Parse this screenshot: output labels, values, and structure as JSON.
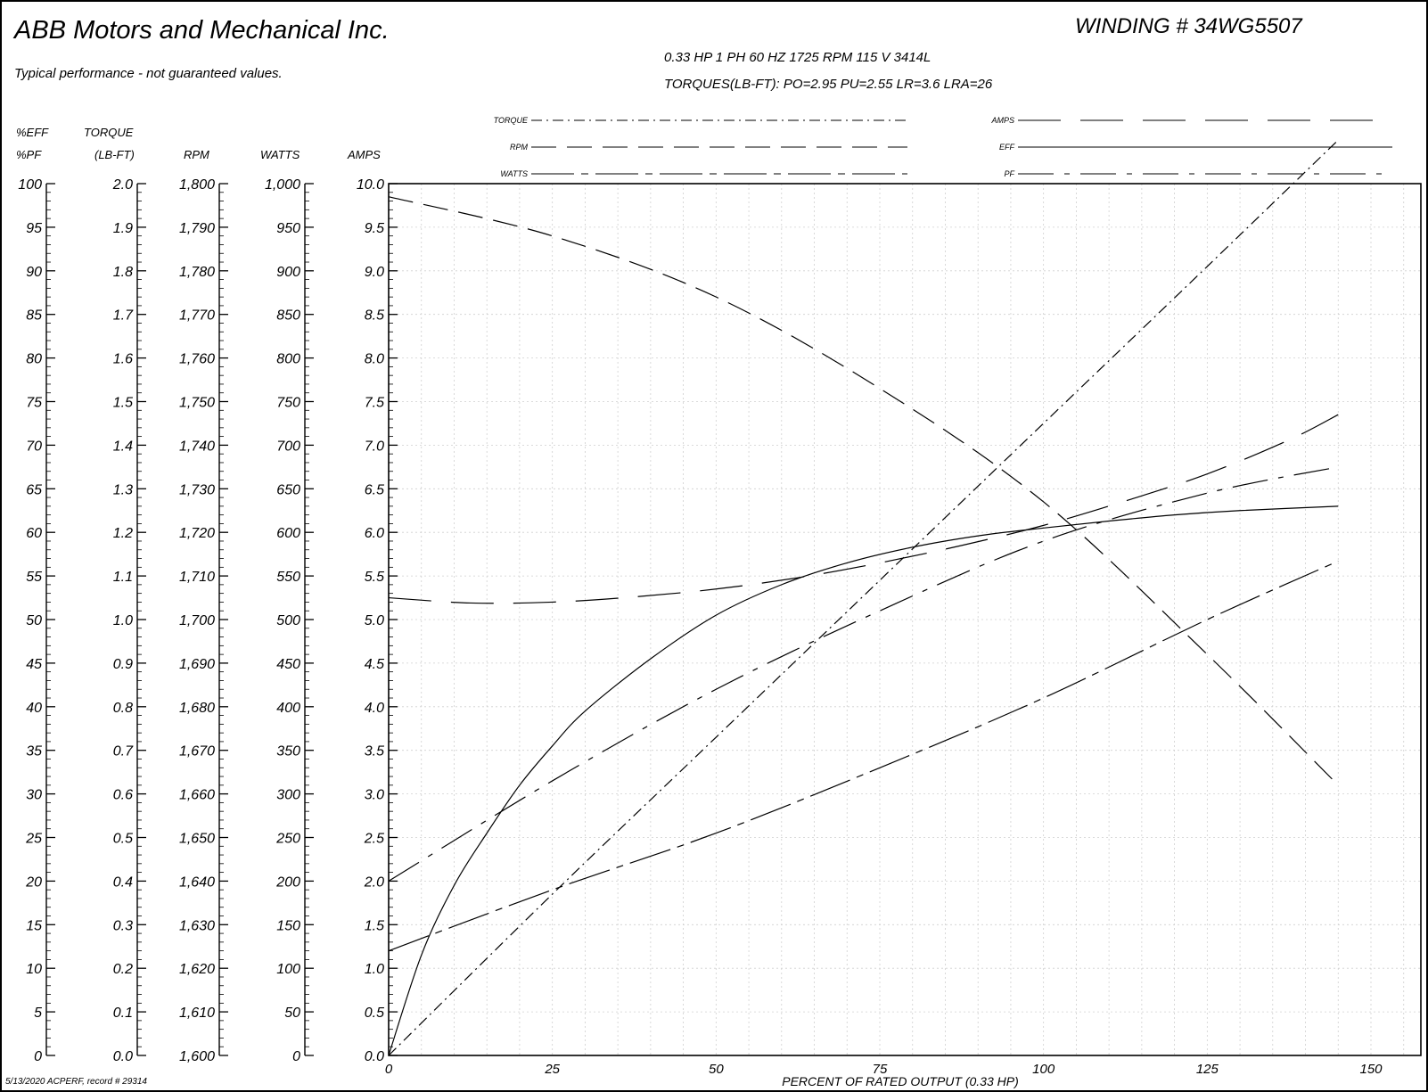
{
  "company": "ABB Motors and Mechanical Inc.",
  "disclaimer": "Typical performance - not guaranteed values.",
  "winding": "WINDING # 34WG5507",
  "specs": "0.33 HP  1 PH  60 HZ  1725 RPM  115 V  3414L",
  "torques": "TORQUES(LB-FT): PO=2.95  PU=2.55  LR=3.6  LRA=26",
  "footer": "5/13/2020 ACPERF, record # 29314",
  "chart_data": {
    "type": "line",
    "xlabel": "PERCENT OF RATED OUTPUT (0.33 HP)",
    "xlim": [
      0,
      150
    ],
    "x_ticks": [
      0,
      25,
      50,
      75,
      100,
      125,
      150
    ],
    "grid": true,
    "legend": {
      "position": "top",
      "entries": [
        "TORQUE",
        "RPM",
        "WATTS",
        "AMPS",
        "EFF",
        "PF"
      ]
    },
    "axes": [
      {
        "id": "eff_pf",
        "label_top": "%EFF",
        "label_bottom": "%PF",
        "ylim": [
          0,
          100
        ],
        "ticks": [
          "0",
          "5",
          "10",
          "15",
          "20",
          "25",
          "30",
          "35",
          "40",
          "45",
          "50",
          "55",
          "60",
          "65",
          "70",
          "75",
          "80",
          "85",
          "90",
          "95",
          "100"
        ]
      },
      {
        "id": "torque",
        "label_top": "TORQUE",
        "label_bottom": "(LB-FT)",
        "ylim": [
          0,
          2.0
        ],
        "ticks": [
          "0.0",
          "0.1",
          "0.2",
          "0.3",
          "0.4",
          "0.5",
          "0.6",
          "0.7",
          "0.8",
          "0.9",
          "1.0",
          "1.1",
          "1.2",
          "1.3",
          "1.4",
          "1.5",
          "1.6",
          "1.7",
          "1.8",
          "1.9",
          "2.0"
        ]
      },
      {
        "id": "rpm",
        "label_top": "",
        "label_bottom": "RPM",
        "ylim": [
          1600,
          1800
        ],
        "ticks": [
          "1,600",
          "1,610",
          "1,620",
          "1,630",
          "1,640",
          "1,650",
          "1,660",
          "1,670",
          "1,680",
          "1,690",
          "1,700",
          "1,710",
          "1,720",
          "1,730",
          "1,740",
          "1,750",
          "1,760",
          "1,770",
          "1,780",
          "1,790",
          "1,800"
        ]
      },
      {
        "id": "watts",
        "label_top": "",
        "label_bottom": "WATTS",
        "ylim": [
          0,
          1000
        ],
        "ticks": [
          "0",
          "50",
          "100",
          "150",
          "200",
          "250",
          "300",
          "350",
          "400",
          "450",
          "500",
          "550",
          "600",
          "650",
          "700",
          "750",
          "800",
          "850",
          "900",
          "950",
          "1,000"
        ]
      },
      {
        "id": "amps",
        "label_top": "",
        "label_bottom": "AMPS",
        "ylim": [
          0,
          10
        ],
        "ticks": [
          "0.0",
          "0.5",
          "1.0",
          "1.5",
          "2.0",
          "2.5",
          "3.0",
          "3.5",
          "4.0",
          "4.5",
          "5.0",
          "5.5",
          "6.0",
          "6.5",
          "7.0",
          "7.5",
          "8.0",
          "8.5",
          "9.0",
          "9.5",
          "10.0"
        ]
      }
    ],
    "series": [
      {
        "name": "TORQUE",
        "axis": "torque",
        "dash": "torque",
        "x": [
          0,
          25,
          50,
          75,
          100,
          125,
          145
        ],
        "y": [
          0,
          0.37,
          0.73,
          1.09,
          1.45,
          1.81,
          2.1
        ]
      },
      {
        "name": "RPM",
        "axis": "rpm",
        "dash": "rpm",
        "x": [
          0,
          25,
          50,
          75,
          100,
          125,
          145
        ],
        "y": [
          1797,
          1788,
          1774,
          1753,
          1727,
          1692,
          1662
        ]
      },
      {
        "name": "WATTS",
        "axis": "watts",
        "dash": "watts",
        "x": [
          0,
          25,
          50,
          75,
          100,
          125,
          145
        ],
        "y": [
          120,
          190,
          255,
          330,
          410,
          500,
          567
        ]
      },
      {
        "name": "AMPS",
        "axis": "amps",
        "dash": "amps",
        "x": [
          0,
          12.5,
          25,
          37.5,
          50,
          62.5,
          75,
          87.5,
          100,
          112.5,
          125,
          137.5,
          145
        ],
        "y": [
          5.25,
          5.19,
          5.2,
          5.26,
          5.35,
          5.48,
          5.65,
          5.85,
          6.08,
          6.36,
          6.67,
          7.06,
          7.35
        ]
      },
      {
        "name": "EFF",
        "axis": "eff_pf",
        "dash": "eff",
        "x": [
          0,
          5,
          10,
          15,
          20,
          25,
          30,
          40,
          50,
          60,
          70,
          80,
          90,
          100,
          110,
          120,
          130,
          145
        ],
        "y": [
          0,
          11.5,
          19.5,
          25.5,
          31,
          35.5,
          39.5,
          45.5,
          50.5,
          54,
          56.5,
          58.3,
          59.6,
          60.5,
          61.3,
          62,
          62.5,
          63
        ]
      },
      {
        "name": "PF",
        "axis": "eff_pf",
        "dash": "pf",
        "x": [
          0,
          25,
          50,
          75,
          100,
          125,
          145
        ],
        "y": [
          20,
          31.5,
          42,
          51,
          59,
          64.5,
          67.5
        ]
      }
    ]
  }
}
